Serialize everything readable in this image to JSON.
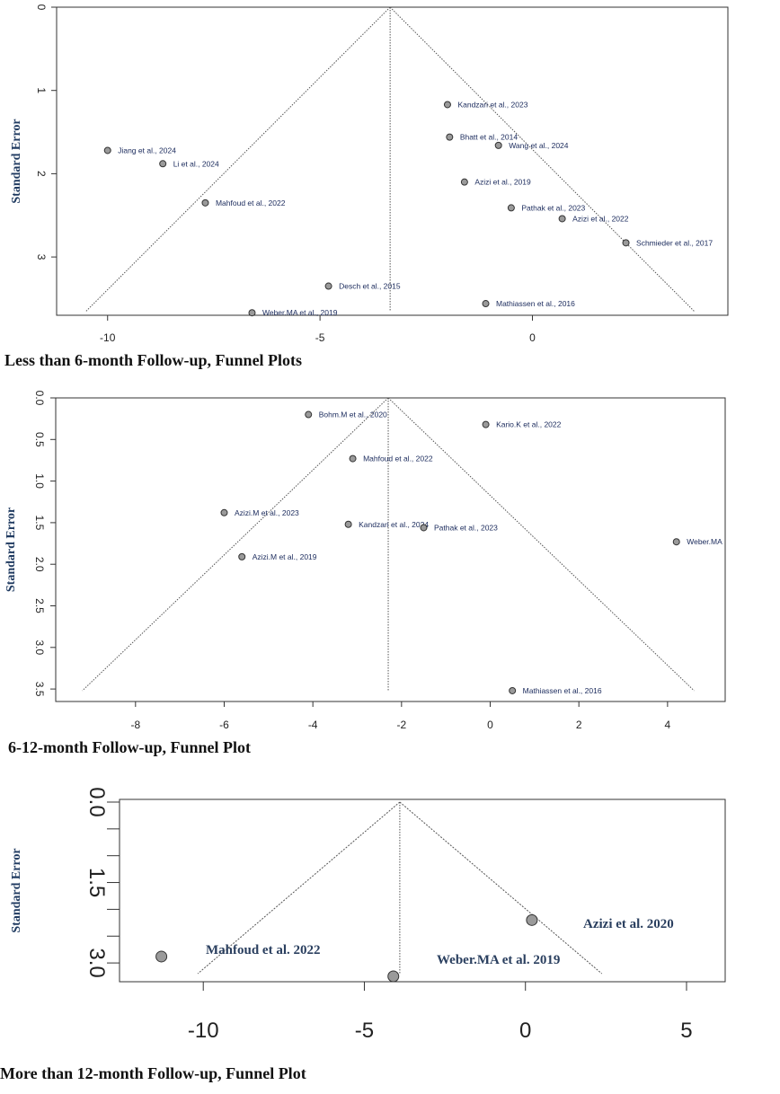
{
  "colors": {
    "axis": "#333333",
    "point_fill": "#9a9a9a",
    "label": "#1a2a5c",
    "ylabel": "#1f3a60",
    "funnel": "#555555"
  },
  "chart_data": [
    {
      "type": "scatter",
      "subtype": "funnel",
      "caption": "Less than 6-month Follow-up, Funnel Plots",
      "xlabel": "",
      "ylabel": "Standard Error",
      "xlim": [
        -11.2,
        4.6
      ],
      "ylim": [
        0,
        3.7
      ],
      "y_reversed": true,
      "x_ticks": [
        -10,
        -5,
        0
      ],
      "x_tick_labels": [
        "-10",
        "-5",
        "0"
      ],
      "y_ticks": [
        0,
        1,
        2,
        3
      ],
      "y_tick_labels": [
        "0",
        "1",
        "2",
        "3"
      ],
      "funnel_center": -3.35,
      "funnel_max_se": 3.65,
      "points": [
        {
          "label": "Jiang et al., 2024",
          "x": -10.0,
          "y": 1.72
        },
        {
          "label": "Li et al., 2024",
          "x": -8.7,
          "y": 1.88
        },
        {
          "label": "Mahfoud et al., 2022",
          "x": -7.7,
          "y": 2.35
        },
        {
          "label": "Desch et al., 2015",
          "x": -4.8,
          "y": 3.35
        },
        {
          "label": "Weber.MA et al., 2019",
          "x": -6.6,
          "y": 3.67
        },
        {
          "label": "Kandzari et al., 2023",
          "x": -2.0,
          "y": 1.17
        },
        {
          "label": "Bhatt et al., 2014",
          "x": -1.95,
          "y": 1.56
        },
        {
          "label": "Wang et al., 2024",
          "x": -0.8,
          "y": 1.66
        },
        {
          "label": "Azizi et al., 2019",
          "x": -1.6,
          "y": 2.1
        },
        {
          "label": "Pathak et al., 2023",
          "x": -0.5,
          "y": 2.41
        },
        {
          "label": "Azizi et al., 2022",
          "x": 0.7,
          "y": 2.54
        },
        {
          "label": "Schmieder et al., 2017",
          "x": 2.2,
          "y": 2.83
        },
        {
          "label": "Mathiassen et al., 2016",
          "x": -1.1,
          "y": 3.56
        }
      ]
    },
    {
      "type": "scatter",
      "subtype": "funnel",
      "caption": "6-12-month Follow-up, Funnel Plot",
      "xlabel": "",
      "ylabel": "Standard Error",
      "xlim": [
        -9.8,
        5.3
      ],
      "ylim": [
        0,
        3.65
      ],
      "y_reversed": true,
      "x_ticks": [
        -8,
        -6,
        -4,
        -2,
        0,
        2,
        4
      ],
      "x_tick_labels": [
        "-8",
        "-6",
        "-4",
        "-2",
        "0",
        "2",
        "4"
      ],
      "y_ticks": [
        0,
        0.5,
        1,
        1.5,
        2,
        2.5,
        3,
        3.5
      ],
      "y_tick_labels": [
        "0.0",
        "0.5",
        "1.0",
        "1.5",
        "2.0",
        "2.5",
        "3.0",
        "3.5"
      ],
      "funnel_center": -2.3,
      "funnel_max_se": 3.52,
      "points": [
        {
          "label": "Bohm.M et al., 2020",
          "x": -4.1,
          "y": 0.2
        },
        {
          "label": "Kario.K et al., 2022",
          "x": -0.1,
          "y": 0.32
        },
        {
          "label": "Mahfoud et al., 2022",
          "x": -3.1,
          "y": 0.73
        },
        {
          "label": "Azizi.M et al., 2023",
          "x": -6.0,
          "y": 1.38
        },
        {
          "label": "Kandzari et al., 2024",
          "x": -3.2,
          "y": 1.52
        },
        {
          "label": "Pathak et al., 2023",
          "x": -1.5,
          "y": 1.56
        },
        {
          "label": "Azizi.M et al., 2019",
          "x": -5.6,
          "y": 1.91
        },
        {
          "label": "Weber.MA",
          "x": 4.2,
          "y": 1.73
        },
        {
          "label": "Mathiassen et al., 2016",
          "x": 0.5,
          "y": 3.52
        }
      ]
    },
    {
      "type": "scatter",
      "subtype": "funnel",
      "caption": "More than 12-month Follow-up, Funnel Plot",
      "xlabel": "",
      "ylabel": "Standard Error",
      "xlim": [
        -12.6,
        6.2
      ],
      "ylim": [
        -0.05,
        3.35
      ],
      "y_reversed": true,
      "x_ticks": [
        -10,
        -5,
        0,
        5
      ],
      "x_tick_labels": [
        "-10",
        "-5",
        "0",
        "5"
      ],
      "y_ticks": [
        0,
        0.5,
        1,
        1.5,
        2,
        2.5,
        3
      ],
      "y_tick_labels": [
        "0.0",
        "",
        "",
        "1.5",
        "",
        "",
        "3.0"
      ],
      "funnel_center": -3.9,
      "funnel_max_se": 3.2,
      "points": [
        {
          "label": "Mahfoud et al. 2022",
          "x": -11.3,
          "y": 2.88
        },
        {
          "label": "Weber.MA et al. 2019",
          "x": -4.1,
          "y": 3.25
        },
        {
          "label": "Azizi et al. 2020",
          "x": 0.2,
          "y": 2.2
        }
      ]
    }
  ]
}
